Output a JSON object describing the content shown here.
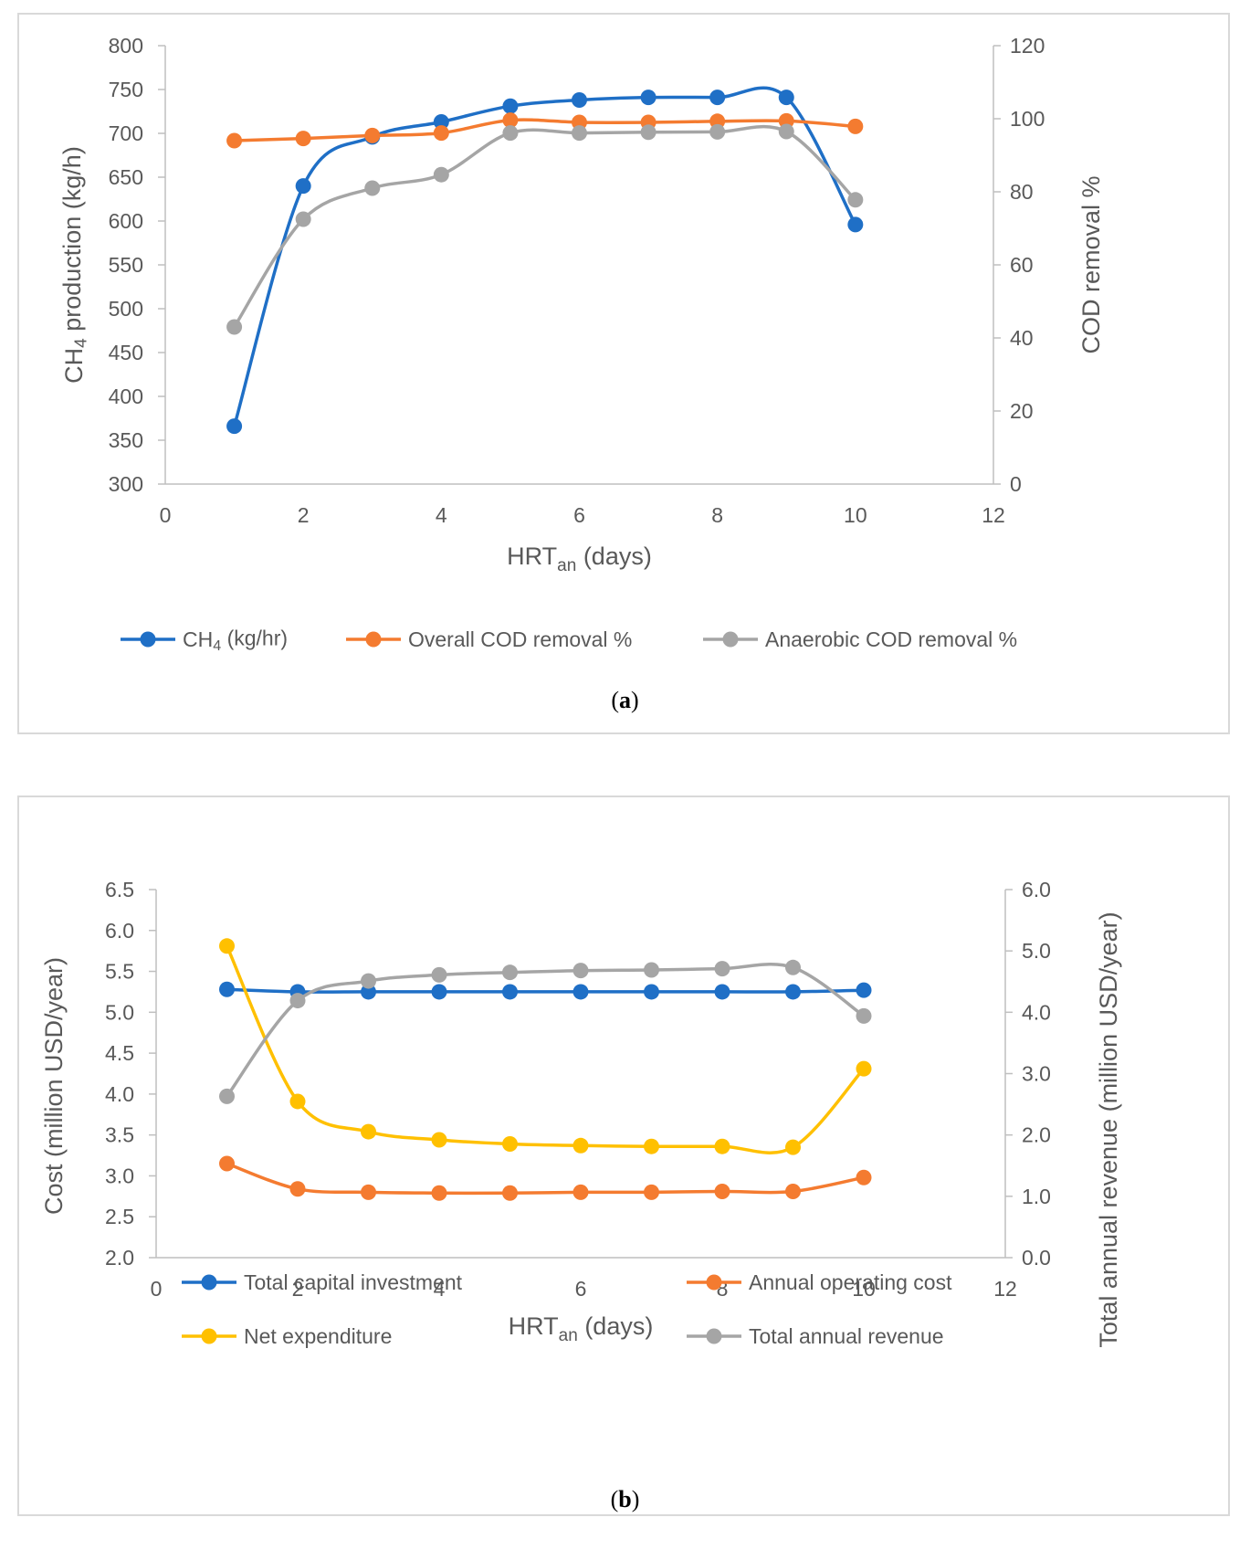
{
  "chart_data": [
    {
      "id": "a",
      "type": "line",
      "caption": "a",
      "xlabel": "HRT",
      "xlabel_sub": "an",
      "xlabel_suffix": " (days)",
      "xlim": [
        0,
        12
      ],
      "xticks": [
        0,
        2,
        4,
        6,
        8,
        10,
        12
      ],
      "ylabel_left": "CH4 production (kg/h)",
      "ylim_left": [
        300,
        800
      ],
      "yticks_left": [
        300,
        350,
        400,
        450,
        500,
        550,
        600,
        650,
        700,
        750,
        800
      ],
      "ylabel_right": "COD removal %",
      "ylim_right": [
        0,
        120
      ],
      "yticks_right": [
        0,
        20,
        40,
        60,
        80,
        100,
        120
      ],
      "grid": false,
      "legend_position": "bottom",
      "x": [
        1,
        2,
        3,
        4,
        5,
        6,
        7,
        8,
        9,
        10
      ],
      "series": [
        {
          "name": "CH4 (kg/hr)",
          "axis": "left",
          "color": "#1f6fc6",
          "values": [
            366,
            640,
            696,
            713,
            731,
            738,
            741,
            741,
            741,
            596
          ]
        },
        {
          "name": "Overall COD removal %",
          "axis": "right",
          "color": "#f47b30",
          "values": [
            94.0,
            94.6,
            95.4,
            96.1,
            99.6,
            99.0,
            99.0,
            99.3,
            99.4,
            97.9
          ]
        },
        {
          "name": "Anaerobic COD removal %",
          "axis": "right",
          "color": "#a5a5a5",
          "values": [
            43.0,
            72.5,
            81.0,
            84.7,
            96.1,
            96.1,
            96.3,
            96.4,
            96.5,
            77.8
          ]
        }
      ]
    },
    {
      "id": "b",
      "type": "line",
      "caption": "b",
      "xlabel": "HRT",
      "xlabel_sub": "an",
      "xlabel_suffix": " (days)",
      "xlim": [
        0,
        12
      ],
      "xticks": [
        0,
        2,
        4,
        6,
        8,
        10,
        12
      ],
      "ylabel_left": "Cost (million USD/year)",
      "ylim_left": [
        2.0,
        6.5
      ],
      "yticks_left": [
        "2.0",
        "2.5",
        "3.0",
        "3.5",
        "4.0",
        "4.5",
        "5.0",
        "5.5",
        "6.0",
        "6.5"
      ],
      "ylabel_right": "Total annual revenue (million USD/year)",
      "ylim_right": [
        0.0,
        6.0
      ],
      "yticks_right": [
        "0.0",
        "1.0",
        "2.0",
        "3.0",
        "4.0",
        "5.0",
        "6.0"
      ],
      "grid": false,
      "legend_position": "bottom",
      "x": [
        1,
        2,
        3,
        4,
        5,
        6,
        7,
        8,
        9,
        10
      ],
      "series": [
        {
          "name": "Total capital investment",
          "axis": "left",
          "color": "#1f6fc6",
          "values": [
            5.28,
            5.25,
            5.25,
            5.25,
            5.25,
            5.25,
            5.25,
            5.25,
            5.25,
            5.27
          ]
        },
        {
          "name": "Annual operating cost",
          "axis": "left",
          "color": "#f47b30",
          "values": [
            3.15,
            2.84,
            2.8,
            2.79,
            2.79,
            2.8,
            2.8,
            2.81,
            2.81,
            2.98
          ]
        },
        {
          "name": "Net expenditure",
          "axis": "left",
          "color": "#ffc000",
          "values": [
            5.81,
            3.91,
            3.54,
            3.44,
            3.39,
            3.37,
            3.36,
            3.36,
            3.35,
            4.31
          ]
        },
        {
          "name": "Total annual revenue",
          "axis": "right",
          "color": "#a5a5a5",
          "values": [
            2.63,
            4.19,
            4.51,
            4.61,
            4.65,
            4.68,
            4.69,
            4.71,
            4.73,
            3.94
          ]
        }
      ]
    }
  ]
}
